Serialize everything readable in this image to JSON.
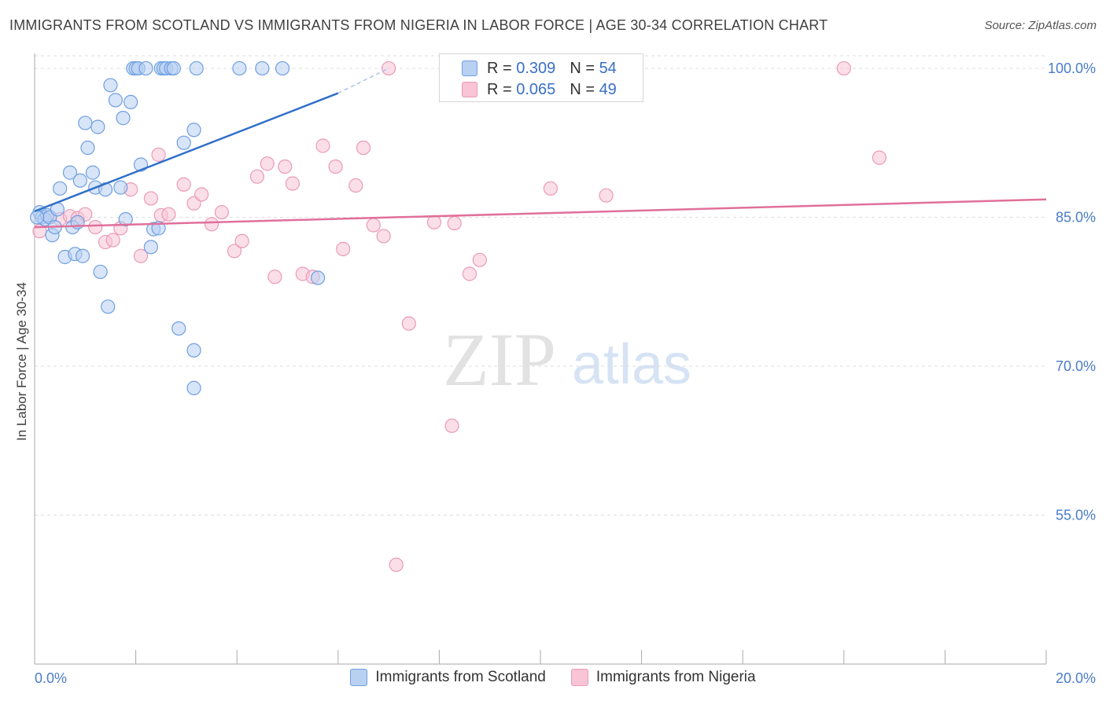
{
  "header": {
    "title": "IMMIGRANTS FROM SCOTLAND VS IMMIGRANTS FROM NIGERIA IN LABOR FORCE | AGE 30-34 CORRELATION CHART",
    "source": "Source: ZipAtlas.com"
  },
  "watermark": {
    "zip": "ZIP",
    "atlas": "atlas"
  },
  "legend": {
    "scotland": {
      "r_label": "R =",
      "r_value": "0.309",
      "n_label": "N =",
      "n_value": "54"
    },
    "nigeria": {
      "r_label": "R =",
      "r_value": "0.065",
      "n_label": "N =",
      "n_value": "49"
    }
  },
  "colors": {
    "scotland_fill": "#b8d0f2",
    "scotland_stroke": "#6f9fe0",
    "scotland_line": "#2f6fc9",
    "nigeria_fill": "#f8c4d6",
    "nigeria_stroke": "#eb9ab8",
    "nigeria_line": "#e0709a",
    "tick_text": "#4a7cc9",
    "grid": "#dddddd"
  },
  "chart_data": {
    "type": "scatter",
    "title": "IMMIGRANTS FROM SCOTLAND VS IMMIGRANTS FROM NIGERIA IN LABOR FORCE | AGE 30-34 CORRELATION CHART",
    "xlabel": "",
    "ylabel": "In Labor Force | Age 30-34",
    "xlim": [
      0,
      20
    ],
    "ylim": [
      40,
      101.5
    ],
    "x_tick_labels": [
      "0.0%",
      "20.0%"
    ],
    "y_ticks": [
      55,
      70,
      85,
      100
    ],
    "y_tick_labels": [
      "55.0%",
      "70.0%",
      "85.0%",
      "100.0%"
    ],
    "grid": true,
    "series": [
      {
        "name": "Immigrants from Scotland",
        "r": 0.309,
        "n": 54,
        "trend": {
          "x0": 0.0,
          "y0": 85.6,
          "x1": 6.0,
          "y1": 97.5,
          "dash_to_x": 7.0,
          "dash_to_y": 100.0
        },
        "points": [
          [
            0.1,
            85.5
          ],
          [
            0.15,
            85.0
          ],
          [
            0.2,
            84.8
          ],
          [
            0.25,
            85.2
          ],
          [
            0.3,
            85.0
          ],
          [
            0.35,
            83.2
          ],
          [
            0.4,
            84.0
          ],
          [
            0.45,
            85.8
          ],
          [
            0.5,
            87.9
          ],
          [
            0.6,
            81.0
          ],
          [
            0.7,
            89.5
          ],
          [
            0.75,
            84.0
          ],
          [
            0.8,
            81.3
          ],
          [
            0.85,
            84.5
          ],
          [
            0.9,
            88.7
          ],
          [
            0.95,
            81.1
          ],
          [
            1.0,
            94.5
          ],
          [
            1.05,
            92.0
          ],
          [
            1.15,
            89.5
          ],
          [
            1.2,
            88.0
          ],
          [
            1.25,
            94.1
          ],
          [
            1.3,
            79.5
          ],
          [
            1.4,
            87.8
          ],
          [
            1.45,
            76.0
          ],
          [
            1.5,
            98.3
          ],
          [
            1.6,
            96.8
          ],
          [
            1.7,
            88.0
          ],
          [
            1.75,
            95.0
          ],
          [
            1.8,
            84.8
          ],
          [
            1.9,
            96.6
          ],
          [
            1.95,
            100.0
          ],
          [
            2.0,
            100.0
          ],
          [
            2.05,
            100.0
          ],
          [
            2.1,
            90.3
          ],
          [
            2.2,
            100.0
          ],
          [
            2.3,
            82.0
          ],
          [
            2.35,
            83.8
          ],
          [
            2.45,
            83.9
          ],
          [
            2.5,
            100.0
          ],
          [
            2.55,
            100.0
          ],
          [
            2.6,
            100.0
          ],
          [
            2.7,
            100.0
          ],
          [
            2.75,
            100.0
          ],
          [
            2.85,
            73.8
          ],
          [
            2.95,
            92.5
          ],
          [
            3.15,
            67.8
          ],
          [
            3.15,
            71.6
          ],
          [
            3.15,
            93.8
          ],
          [
            3.2,
            100.0
          ],
          [
            4.05,
            100.0
          ],
          [
            4.5,
            100.0
          ],
          [
            4.9,
            100.0
          ],
          [
            5.6,
            78.9
          ],
          [
            0.05,
            85.0
          ]
        ]
      },
      {
        "name": "Immigrants from Nigeria",
        "r": 0.065,
        "n": 49,
        "trend": {
          "x0": 0.0,
          "y0": 84.0,
          "x1": 20.0,
          "y1": 86.8
        },
        "points": [
          [
            0.1,
            83.6
          ],
          [
            0.3,
            85.0
          ],
          [
            0.5,
            84.8
          ],
          [
            0.7,
            85.1
          ],
          [
            0.85,
            84.9
          ],
          [
            1.0,
            85.3
          ],
          [
            1.2,
            84.0
          ],
          [
            1.4,
            82.5
          ],
          [
            1.55,
            82.7
          ],
          [
            1.7,
            83.9
          ],
          [
            1.9,
            87.8
          ],
          [
            2.1,
            81.1
          ],
          [
            2.3,
            86.9
          ],
          [
            2.45,
            91.3
          ],
          [
            2.5,
            85.2
          ],
          [
            2.65,
            85.3
          ],
          [
            2.95,
            88.3
          ],
          [
            3.15,
            86.4
          ],
          [
            3.3,
            87.3
          ],
          [
            3.5,
            84.3
          ],
          [
            3.7,
            85.5
          ],
          [
            3.95,
            81.6
          ],
          [
            4.1,
            82.6
          ],
          [
            4.4,
            89.1
          ],
          [
            4.6,
            90.4
          ],
          [
            4.75,
            79.0
          ],
          [
            4.95,
            90.1
          ],
          [
            5.1,
            88.4
          ],
          [
            5.3,
            79.3
          ],
          [
            5.5,
            79.0
          ],
          [
            5.7,
            92.2
          ],
          [
            5.95,
            90.1
          ],
          [
            6.1,
            81.8
          ],
          [
            6.35,
            88.2
          ],
          [
            6.5,
            92.0
          ],
          [
            6.7,
            84.2
          ],
          [
            6.9,
            83.1
          ],
          [
            7.0,
            100.0
          ],
          [
            7.15,
            50.0
          ],
          [
            7.4,
            74.3
          ],
          [
            7.9,
            84.5
          ],
          [
            8.25,
            64.0
          ],
          [
            8.3,
            84.4
          ],
          [
            8.6,
            79.3
          ],
          [
            8.8,
            80.7
          ],
          [
            10.2,
            87.9
          ],
          [
            11.3,
            87.2
          ],
          [
            16.0,
            100.0
          ],
          [
            16.7,
            91.0
          ]
        ]
      }
    ]
  },
  "bottom_legend": {
    "scotland_label": "Immigrants from Scotland",
    "nigeria_label": "Immigrants from Nigeria"
  }
}
